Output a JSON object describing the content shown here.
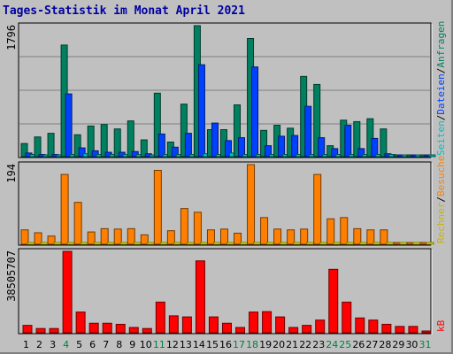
{
  "title": "Tages-Statistik im Monat April 2021",
  "colors": {
    "background": "#c0c0c0",
    "title": "#0000a0",
    "hits": "#008060",
    "files": "#0040ff",
    "pages": "#00c0c0",
    "visits": "#ff8000",
    "sites": "#ffff00",
    "kbytes": "#ff0000",
    "weekend_day": "#008040",
    "weekday": "#000000"
  },
  "chart_data": [
    {
      "type": "bar",
      "categories": [
        "1",
        "2",
        "3",
        "4",
        "5",
        "6",
        "7",
        "8",
        "9",
        "10",
        "11",
        "12",
        "13",
        "14",
        "15",
        "16",
        "17",
        "18",
        "19",
        "20",
        "21",
        "22",
        "23",
        "24",
        "25",
        "26",
        "27",
        "28",
        "29",
        "30",
        "31"
      ],
      "weekend_days": [
        "4",
        "11",
        "17",
        "18",
        "24",
        "25",
        "31"
      ],
      "ylabel": "1796",
      "ylim": [
        0,
        1796
      ],
      "series": [
        {
          "name": "Anfragen",
          "color": "#008060",
          "values": [
            180,
            270,
            320,
            1530,
            300,
            420,
            440,
            380,
            490,
            230,
            870,
            200,
            720,
            1796,
            370,
            370,
            710,
            1620,
            360,
            430,
            390,
            1100,
            990,
            150,
            500,
            480,
            520,
            380,
            0,
            0,
            0
          ]
        },
        {
          "name": "Dateien",
          "color": "#0040ff",
          "values": [
            50,
            30,
            30,
            860,
            120,
            80,
            60,
            60,
            70,
            40,
            310,
            130,
            320,
            1260,
            460,
            220,
            260,
            1230,
            150,
            280,
            290,
            690,
            260,
            110,
            430,
            110,
            250,
            40,
            0,
            0,
            0
          ]
        },
        {
          "name": "Seiten",
          "color": "#00c0c0",
          "values": [
            30,
            20,
            20,
            30,
            40,
            30,
            30,
            30,
            30,
            20,
            30,
            30,
            30,
            40,
            30,
            50,
            30,
            30,
            30,
            30,
            30,
            30,
            30,
            30,
            30,
            30,
            30,
            30,
            0,
            0,
            0
          ]
        }
      ],
      "legend": "right-vertical"
    },
    {
      "type": "bar",
      "categories": [
        "1",
        "2",
        "3",
        "4",
        "5",
        "6",
        "7",
        "8",
        "9",
        "10",
        "11",
        "12",
        "13",
        "14",
        "15",
        "16",
        "17",
        "18",
        "19",
        "20",
        "21",
        "22",
        "23",
        "24",
        "25",
        "26",
        "27",
        "28",
        "29",
        "30",
        "31"
      ],
      "ylabel": "194",
      "ylim": [
        0,
        194
      ],
      "series": [
        {
          "name": "Besuche",
          "color": "#ff8000",
          "values": [
            35,
            28,
            20,
            170,
            102,
            30,
            38,
            37,
            38,
            23,
            180,
            33,
            87,
            78,
            35,
            37,
            27,
            194,
            65,
            37,
            35,
            37,
            170,
            62,
            65,
            38,
            35,
            35,
            0,
            0,
            0
          ]
        },
        {
          "name": "Rechner",
          "color": "#ffff00",
          "values": [
            0,
            0,
            0,
            0,
            0,
            0,
            0,
            0,
            0,
            0,
            0,
            0,
            0,
            0,
            0,
            0,
            0,
            0,
            0,
            0,
            0,
            0,
            0,
            0,
            0,
            0,
            0,
            0,
            0,
            0,
            0
          ]
        }
      ],
      "legend": "right-vertical"
    },
    {
      "type": "bar",
      "categories": [
        "1",
        "2",
        "3",
        "4",
        "5",
        "6",
        "7",
        "8",
        "9",
        "10",
        "11",
        "12",
        "13",
        "14",
        "15",
        "16",
        "17",
        "18",
        "19",
        "20",
        "21",
        "22",
        "23",
        "24",
        "25",
        "26",
        "27",
        "28",
        "29",
        "30",
        "31"
      ],
      "ylabel": "38505707",
      "ylim": [
        0,
        38505707
      ],
      "series": [
        {
          "name": "kB",
          "color": "#ff0000",
          "values": [
            3500000,
            2000000,
            2000000,
            38505707,
            9800000,
            4500000,
            4500000,
            4000000,
            2500000,
            2000000,
            14500000,
            8000000,
            7500000,
            34000000,
            7500000,
            4500000,
            2500000,
            9800000,
            10000000,
            7500000,
            2500000,
            3500000,
            6000000,
            30000000,
            14500000,
            7000000,
            6000000,
            4000000,
            3000000,
            3000000,
            0
          ]
        }
      ],
      "legend": "right-vertical"
    }
  ]
}
